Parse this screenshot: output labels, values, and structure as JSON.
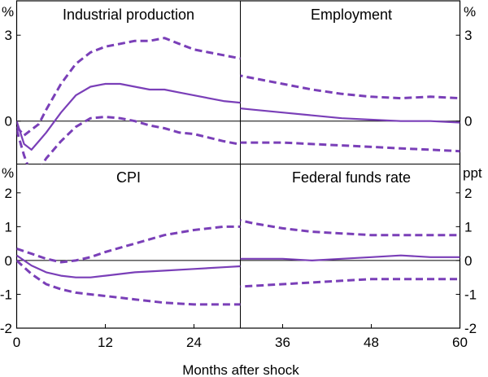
{
  "colors": {
    "line": "#7a3fb8"
  },
  "chart_data": {
    "type": "line",
    "xlabel": "Months after shock",
    "x_ticks": [
      0,
      12,
      24,
      36,
      48,
      60
    ],
    "x_range": [
      0,
      60
    ],
    "panels": [
      {
        "title": "Industrial production",
        "unit": "%",
        "ylim": [
          -1.5,
          4.2
        ],
        "yticks": [
          3,
          0
        ],
        "series": [
          {
            "name": "Median",
            "style": "solid",
            "x": [
              0,
              1,
              2,
              3,
              4,
              6,
              8,
              10,
              12,
              14,
              16,
              18,
              20,
              22,
              24,
              28,
              32,
              36,
              40,
              44,
              48,
              52,
              55
            ],
            "y": [
              0,
              -0.8,
              -1.0,
              -0.7,
              -0.4,
              0.3,
              0.9,
              1.2,
              1.3,
              1.3,
              1.2,
              1.1,
              1.1,
              1.0,
              0.9,
              0.7,
              0.6,
              0.5,
              0.45,
              0.4,
              0.45,
              0.4,
              0.35
            ]
          },
          {
            "name": "Upper bound",
            "style": "dashed",
            "x": [
              0,
              1,
              2,
              3,
              4,
              6,
              8,
              10,
              12,
              14,
              16,
              18,
              20,
              22,
              24,
              28,
              32,
              36,
              40,
              44,
              48,
              52,
              55
            ],
            "y": [
              -0.2,
              -0.5,
              -0.3,
              -0.1,
              0.4,
              1.3,
              2.0,
              2.4,
              2.6,
              2.7,
              2.8,
              2.8,
              2.9,
              2.7,
              2.5,
              2.3,
              2.1,
              2.0,
              1.8,
              1.65,
              1.6,
              1.65,
              1.6
            ]
          },
          {
            "name": "Lower bound",
            "style": "dashed",
            "x": [
              0,
              1,
              2,
              3,
              4,
              6,
              8,
              10,
              12,
              14,
              16,
              18,
              20,
              22,
              24,
              28,
              32,
              36,
              40,
              44,
              48,
              52,
              55
            ],
            "y": [
              -0.3,
              -1.2,
              -1.9,
              -1.7,
              -1.3,
              -0.7,
              -0.2,
              0.1,
              0.15,
              0.1,
              0.0,
              -0.15,
              -0.25,
              -0.4,
              -0.45,
              -0.7,
              -0.9,
              -1.1,
              -1.2,
              -1.2,
              -1.15,
              -1.15,
              -1.15
            ]
          }
        ]
      },
      {
        "title": "Employment",
        "unit": "%",
        "ylim": [
          -1.5,
          4.2
        ],
        "yticks": [
          3,
          0
        ],
        "series": [
          {
            "name": "Median",
            "style": "solid",
            "x": [
              0,
              2,
              4,
              6,
              8,
              10,
              12,
              14,
              16,
              18,
              20,
              22,
              24,
              28,
              32,
              36,
              40,
              44,
              48,
              52,
              56,
              60
            ],
            "y": [
              -0.4,
              -0.6,
              -0.4,
              -0.1,
              0.15,
              0.3,
              0.45,
              0.5,
              0.55,
              0.55,
              0.55,
              0.55,
              0.55,
              0.5,
              0.4,
              0.3,
              0.2,
              0.1,
              0.05,
              0.0,
              0.0,
              -0.05
            ]
          },
          {
            "name": "Upper bound",
            "style": "dashed",
            "x": [
              0,
              2,
              4,
              6,
              8,
              10,
              12,
              14,
              16,
              18,
              20,
              22,
              24,
              28,
              32,
              36,
              40,
              44,
              48,
              52,
              56,
              60
            ],
            "y": [
              -0.2,
              -0.3,
              -0.1,
              0.3,
              0.8,
              1.2,
              1.5,
              1.7,
              1.85,
              1.95,
              2.0,
              1.95,
              1.9,
              1.7,
              1.5,
              1.3,
              1.1,
              0.95,
              0.85,
              0.8,
              0.85,
              0.8
            ]
          },
          {
            "name": "Lower bound",
            "style": "dashed",
            "x": [
              0,
              2,
              4,
              6,
              8,
              10,
              12,
              14,
              16,
              18,
              20,
              22,
              24,
              28,
              32,
              36,
              40,
              44,
              48,
              52,
              56,
              60
            ],
            "y": [
              -0.7,
              -1.0,
              -0.9,
              -0.7,
              -0.55,
              -0.45,
              -0.4,
              -0.45,
              -0.5,
              -0.55,
              -0.6,
              -0.65,
              -0.7,
              -0.75,
              -0.75,
              -0.75,
              -0.8,
              -0.85,
              -0.9,
              -0.95,
              -1.0,
              -1.05
            ]
          }
        ]
      },
      {
        "title": "CPI",
        "unit": "%",
        "ylim": [
          -2,
          2.85
        ],
        "yticks": [
          2,
          1,
          0,
          -1,
          -2
        ],
        "series": [
          {
            "name": "Median",
            "style": "solid",
            "x": [
              0,
              2,
              4,
              6,
              8,
              10,
              12,
              16,
              20,
              24,
              28,
              32,
              36,
              40,
              44,
              48,
              52,
              55
            ],
            "y": [
              0.15,
              -0.15,
              -0.35,
              -0.45,
              -0.5,
              -0.5,
              -0.45,
              -0.35,
              -0.3,
              -0.25,
              -0.2,
              -0.15,
              -0.1,
              -0.1,
              -0.05,
              -0.05,
              -0.05,
              0.0
            ]
          },
          {
            "name": "Upper bound",
            "style": "dashed",
            "x": [
              0,
              2,
              4,
              6,
              8,
              10,
              12,
              16,
              20,
              24,
              28,
              32,
              36,
              40,
              44,
              48,
              52,
              55
            ],
            "y": [
              0.35,
              0.2,
              0.05,
              -0.05,
              0.0,
              0.1,
              0.25,
              0.5,
              0.75,
              0.9,
              1.0,
              1.0,
              0.95,
              0.95,
              1.0,
              1.0,
              1.05,
              1.1
            ]
          },
          {
            "name": "Lower bound",
            "style": "dashed",
            "x": [
              0,
              2,
              4,
              6,
              8,
              10,
              12,
              16,
              20,
              24,
              28,
              32,
              36,
              40,
              44,
              48,
              52,
              55
            ],
            "y": [
              0.0,
              -0.4,
              -0.7,
              -0.85,
              -0.95,
              -1.0,
              -1.05,
              -1.15,
              -1.25,
              -1.3,
              -1.3,
              -1.3,
              -1.25,
              -1.25,
              -1.2,
              -1.2,
              -1.2,
              -1.25
            ]
          }
        ]
      },
      {
        "title": "Federal funds rate",
        "unit": "ppt",
        "ylim": [
          -2,
          2.85
        ],
        "yticks": [
          2,
          1,
          0,
          -1,
          -2
        ],
        "series": [
          {
            "name": "Median",
            "style": "solid",
            "x": [
              0,
              1,
              2,
              3,
              4,
              5,
              6,
              8,
              10,
              12,
              14,
              16,
              18,
              20,
              22,
              24,
              28,
              32,
              36,
              40,
              44,
              48,
              52,
              56,
              60
            ],
            "y": [
              0.0,
              -0.8,
              -1.1,
              -1.15,
              -1.0,
              -0.6,
              -0.3,
              -0.05,
              0.0,
              0.05,
              0.0,
              0.05,
              0.15,
              0.15,
              0.1,
              0.05,
              0.05,
              0.05,
              0.05,
              0.0,
              0.05,
              0.1,
              0.15,
              0.1,
              0.1
            ]
          },
          {
            "name": "Upper bound",
            "style": "dashed",
            "x": [
              0,
              1,
              2,
              3,
              4,
              5,
              6,
              8,
              10,
              12,
              14,
              16,
              18,
              20,
              22,
              24,
              28,
              32,
              36,
              40,
              44,
              48,
              52,
              56,
              60
            ],
            "y": [
              0.0,
              -0.4,
              -0.6,
              -0.6,
              -0.4,
              -0.2,
              0.0,
              0.3,
              0.6,
              0.85,
              1.1,
              1.3,
              1.45,
              1.55,
              1.55,
              1.5,
              1.3,
              1.1,
              0.95,
              0.85,
              0.8,
              0.75,
              0.75,
              0.75,
              0.75
            ]
          },
          {
            "name": "Lower bound",
            "style": "dashed",
            "x": [
              0,
              1,
              2,
              3,
              4,
              5,
              6,
              8,
              10,
              12,
              14,
              16,
              18,
              20,
              22,
              24,
              28,
              32,
              36,
              40,
              44,
              48,
              52,
              56,
              60
            ],
            "y": [
              0.0,
              -1.3,
              -1.65,
              -1.7,
              -1.6,
              -1.35,
              -1.15,
              -0.9,
              -0.7,
              -0.6,
              -0.55,
              -0.65,
              -0.75,
              -0.8,
              -0.85,
              -0.85,
              -0.8,
              -0.75,
              -0.7,
              -0.65,
              -0.6,
              -0.55,
              -0.55,
              -0.55,
              -0.55
            ]
          }
        ]
      }
    ]
  }
}
